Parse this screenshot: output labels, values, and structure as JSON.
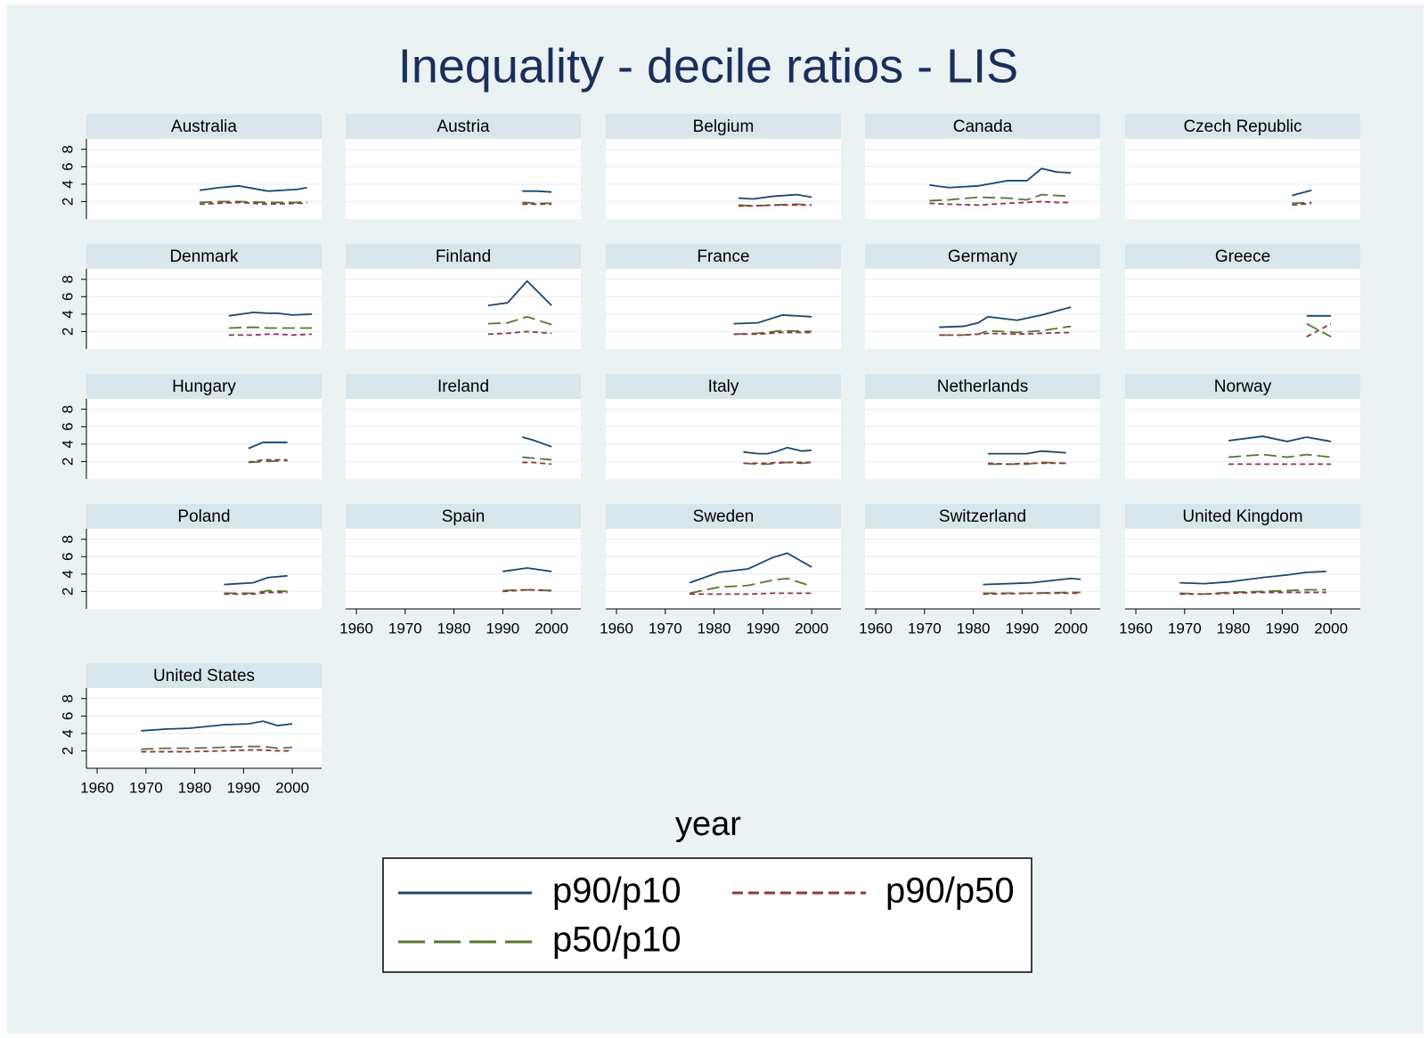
{
  "chart_data": {
    "type": "line",
    "title": "Inequality - decile ratios - LIS",
    "xlabel": "year",
    "xlim": [
      1957.8,
      2006
    ],
    "xticks": [
      1960,
      1970,
      1980,
      1990,
      2000
    ],
    "ylim": [
      0,
      9.2
    ],
    "yticks": [
      2,
      4,
      6,
      8
    ],
    "grid": true,
    "series": [
      {
        "name": "p90/p10",
        "color": "#1a476f",
        "dash": "solid"
      },
      {
        "name": "p50/p10",
        "color": "#55752f",
        "dash": "long"
      },
      {
        "name": "p90/p50",
        "color": "#90353b",
        "dash": "short"
      }
    ],
    "panels": [
      {
        "title": "Australia",
        "x": [
          1981,
          1985,
          1989,
          1995,
          2001,
          2003
        ],
        "series": [
          {
            "values": [
              3.3,
              3.6,
              3.8,
              3.2,
              3.4,
              3.6
            ]
          },
          {
            "values": [
              1.9,
              2.0,
              2.0,
              1.9,
              1.9,
              2.0
            ]
          },
          {
            "values": [
              1.7,
              1.8,
              1.9,
              1.7,
              1.8,
              1.8
            ]
          }
        ]
      },
      {
        "title": "Austria",
        "x": [
          1994,
          1997,
          2000
        ],
        "series": [
          {
            "values": [
              3.2,
              3.2,
              3.1
            ]
          },
          {
            "values": [
              1.9,
              1.8,
              1.8
            ]
          },
          {
            "values": [
              1.7,
              1.7,
              1.7
            ]
          }
        ]
      },
      {
        "title": "Belgium",
        "x": [
          1985,
          1988,
          1992,
          1997,
          2000
        ],
        "series": [
          {
            "values": [
              2.4,
              2.3,
              2.6,
              2.8,
              2.5
            ]
          },
          {
            "values": [
              1.6,
              1.5,
              1.6,
              1.7,
              1.6
            ]
          },
          {
            "values": [
              1.5,
              1.5,
              1.6,
              1.6,
              1.6
            ]
          }
        ]
      },
      {
        "title": "Canada",
        "x": [
          1971,
          1975,
          1981,
          1987,
          1991,
          1994,
          1997,
          2000
        ],
        "series": [
          {
            "values": [
              3.9,
              3.6,
              3.8,
              4.4,
              4.4,
              5.8,
              5.4,
              5.3
            ]
          },
          {
            "values": [
              2.1,
              2.2,
              2.5,
              2.4,
              2.2,
              2.8,
              2.7,
              2.6
            ]
          },
          {
            "values": [
              1.8,
              1.7,
              1.6,
              1.8,
              1.9,
              2.0,
              1.9,
              1.9
            ]
          }
        ]
      },
      {
        "title": "Czech Republic",
        "x": [
          1992,
          1996
        ],
        "series": [
          {
            "values": [
              2.7,
              3.3
            ]
          },
          {
            "values": [
              1.8,
              1.9
            ]
          },
          {
            "values": [
              1.6,
              1.8
            ]
          }
        ]
      },
      {
        "title": "Denmark",
        "x": [
          1987,
          1992,
          1995,
          1997,
          2000,
          2004
        ],
        "series": [
          {
            "values": [
              3.8,
              4.2,
              4.1,
              4.1,
              3.9,
              4.0
            ]
          },
          {
            "values": [
              2.4,
              2.5,
              2.4,
              2.4,
              2.4,
              2.4
            ]
          },
          {
            "values": [
              1.6,
              1.6,
              1.7,
              1.7,
              1.6,
              1.7
            ]
          }
        ]
      },
      {
        "title": "Finland",
        "x": [
          1987,
          1991,
          1995,
          2000
        ],
        "series": [
          {
            "values": [
              5.0,
              5.3,
              7.8,
              5.0
            ]
          },
          {
            "values": [
              2.9,
              3.0,
              3.7,
              2.8
            ]
          },
          {
            "values": [
              1.7,
              1.8,
              2.0,
              1.8
            ]
          }
        ]
      },
      {
        "title": "France",
        "x": [
          1984,
          1989,
          1994,
          2000
        ],
        "series": [
          {
            "values": [
              2.9,
              3.0,
              3.9,
              3.7
            ]
          },
          {
            "values": [
              1.7,
              1.8,
              2.1,
              2.0
            ]
          },
          {
            "values": [
              1.7,
              1.7,
              1.9,
              1.9
            ]
          }
        ]
      },
      {
        "title": "Germany",
        "x": [
          1973,
          1978,
          1981,
          1983,
          1989,
          1994,
          2000
        ],
        "series": [
          {
            "values": [
              2.5,
              2.6,
              3.0,
              3.7,
              3.3,
              3.9,
              4.8
            ]
          },
          {
            "values": [
              1.6,
              1.6,
              1.7,
              2.1,
              1.9,
              2.1,
              2.6
            ]
          },
          {
            "values": [
              1.6,
              1.6,
              1.7,
              1.8,
              1.7,
              1.8,
              1.9
            ]
          }
        ]
      },
      {
        "title": "Greece",
        "x": [
          1995,
          2000
        ],
        "series": [
          {
            "values": [
              3.8,
              3.8
            ]
          },
          {
            "values": [
              2.9,
              1.4
            ]
          },
          {
            "values": [
              1.4,
              2.9
            ]
          }
        ]
      },
      {
        "title": "Hungary",
        "x": [
          1991,
          1994,
          1999
        ],
        "series": [
          {
            "values": [
              3.5,
              4.2,
              4.2
            ]
          },
          {
            "values": [
              1.9,
              2.0,
              2.1
            ]
          },
          {
            "values": [
              1.9,
              2.2,
              2.2
            ]
          }
        ]
      },
      {
        "title": "Ireland",
        "x": [
          1994,
          1996,
          2000
        ],
        "series": [
          {
            "values": [
              4.8,
              4.5,
              3.7
            ]
          },
          {
            "values": [
              2.5,
              2.4,
              2.2
            ]
          },
          {
            "values": [
              1.9,
              1.9,
              1.7
            ]
          }
        ]
      },
      {
        "title": "Italy",
        "x": [
          1986,
          1989,
          1991,
          1993,
          1995,
          1998,
          2000
        ],
        "series": [
          {
            "values": [
              3.1,
              2.9,
              2.9,
              3.2,
              3.6,
              3.2,
              3.3
            ]
          },
          {
            "values": [
              1.8,
              1.7,
              1.7,
              1.8,
              1.9,
              1.8,
              1.9
            ]
          },
          {
            "values": [
              1.8,
              1.8,
              1.8,
              1.9,
              1.9,
              1.9,
              1.9
            ]
          }
        ]
      },
      {
        "title": "Netherlands",
        "x": [
          1983,
          1987,
          1991,
          1994,
          1999
        ],
        "series": [
          {
            "values": [
              2.9,
              2.9,
              2.9,
              3.2,
              3.0
            ]
          },
          {
            "values": [
              1.7,
              1.7,
              1.7,
              1.9,
              1.8
            ]
          },
          {
            "values": [
              1.8,
              1.7,
              1.8,
              1.8,
              1.8
            ]
          }
        ]
      },
      {
        "title": "Norway",
        "x": [
          1979,
          1986,
          1991,
          1995,
          2000
        ],
        "series": [
          {
            "values": [
              4.4,
              4.9,
              4.3,
              4.8,
              4.3
            ]
          },
          {
            "values": [
              2.5,
              2.8,
              2.5,
              2.8,
              2.5
            ]
          },
          {
            "values": [
              1.7,
              1.7,
              1.7,
              1.7,
              1.7
            ]
          }
        ]
      },
      {
        "title": "Poland",
        "x": [
          1986,
          1992,
          1995,
          1999
        ],
        "series": [
          {
            "values": [
              2.8,
              3.0,
              3.6,
              3.8
            ]
          },
          {
            "values": [
              1.8,
              1.8,
              2.1,
              2.0
            ]
          },
          {
            "values": [
              1.7,
              1.7,
              1.9,
              1.9
            ]
          }
        ]
      },
      {
        "title": "Spain",
        "x": [
          1990,
          1995,
          2000
        ],
        "series": [
          {
            "values": [
              4.3,
              4.7,
              4.3
            ]
          },
          {
            "values": [
              2.1,
              2.2,
              2.1
            ]
          },
          {
            "values": [
              2.0,
              2.2,
              2.1
            ]
          }
        ]
      },
      {
        "title": "Sweden",
        "x": [
          1975,
          1981,
          1987,
          1992,
          1995,
          2000
        ],
        "series": [
          {
            "values": [
              3.0,
              4.2,
              4.6,
              5.9,
              6.4,
              4.8
            ]
          },
          {
            "values": [
              1.8,
              2.5,
              2.7,
              3.3,
              3.5,
              2.6
            ]
          },
          {
            "values": [
              1.7,
              1.7,
              1.7,
              1.8,
              1.8,
              1.8
            ]
          }
        ]
      },
      {
        "title": "Switzerland",
        "x": [
          1982,
          1992,
          2000,
          2002
        ],
        "series": [
          {
            "values": [
              2.8,
              3.0,
              3.5,
              3.4
            ]
          },
          {
            "values": [
              1.8,
              1.8,
              1.9,
              1.9
            ]
          },
          {
            "values": [
              1.7,
              1.8,
              1.8,
              1.8
            ]
          }
        ]
      },
      {
        "title": "United Kingdom",
        "x": [
          1969,
          1974,
          1979,
          1986,
          1991,
          1995,
          1999
        ],
        "series": [
          {
            "values": [
              3.0,
              2.9,
              3.1,
              3.6,
              3.9,
              4.2,
              4.3
            ]
          },
          {
            "values": [
              1.8,
              1.7,
              1.9,
              2.0,
              2.1,
              2.2,
              2.2
            ]
          },
          {
            "values": [
              1.7,
              1.7,
              1.8,
              1.9,
              1.9,
              1.9,
              1.9
            ]
          }
        ]
      },
      {
        "title": "United States",
        "x": [
          1969,
          1974,
          1979,
          1986,
          1991,
          1994,
          1997,
          2000
        ],
        "series": [
          {
            "values": [
              4.3,
              4.5,
              4.6,
              5.0,
              5.1,
              5.4,
              4.9,
              5.1
            ]
          },
          {
            "values": [
              2.2,
              2.3,
              2.3,
              2.4,
              2.5,
              2.5,
              2.3,
              2.4
            ]
          },
          {
            "values": [
              1.9,
              1.9,
              1.9,
              2.0,
              2.1,
              2.1,
              2.0,
              2.0
            ]
          }
        ]
      }
    ]
  }
}
